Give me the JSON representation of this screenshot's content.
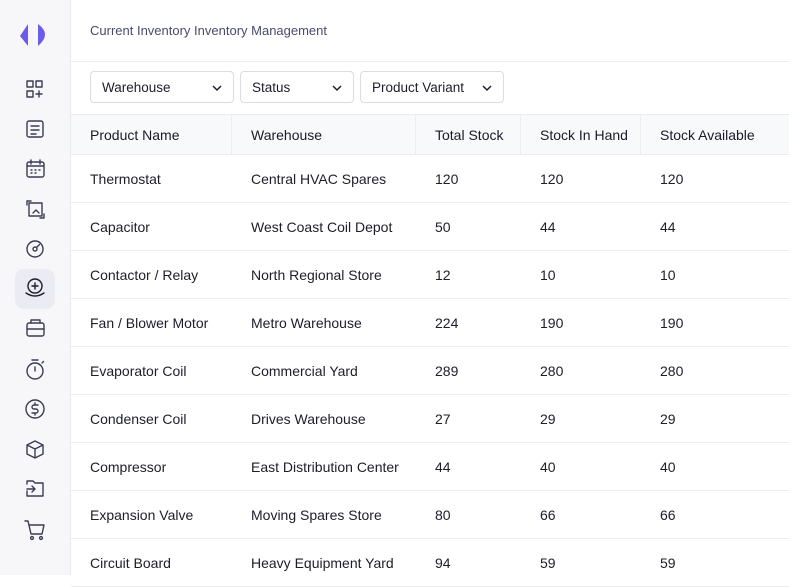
{
  "header": {
    "breadcrumb": "Current Inventory Inventory Management"
  },
  "filters": [
    "Warehouse",
    "Status",
    "Product Variant"
  ],
  "table": {
    "columns": [
      "Product Name",
      "Warehouse",
      "Total Stock",
      "Stock In Hand",
      "Stock Available"
    ],
    "rows": [
      [
        "Thermostat",
        "Central HVAC Spares",
        120,
        120,
        120
      ],
      [
        "Capacitor",
        "West Coast Coil Depot",
        50,
        44,
        44
      ],
      [
        "Contactor / Relay",
        "North Regional Store",
        12,
        10,
        10
      ],
      [
        "Fan / Blower Motor",
        "Metro Warehouse",
        224,
        190,
        190
      ],
      [
        "Evaporator Coil",
        "Commercial Yard",
        289,
        280,
        280
      ],
      [
        "Condenser Coil",
        "Drives Warehouse",
        27,
        29,
        29
      ],
      [
        "Compressor",
        "East Distribution Center",
        44,
        40,
        40
      ],
      [
        "Expansion Valve",
        "Moving Spares Store",
        80,
        66,
        66
      ],
      [
        "Circuit Board",
        "Heavy Equipment Yard",
        94,
        59,
        59
      ]
    ]
  }
}
